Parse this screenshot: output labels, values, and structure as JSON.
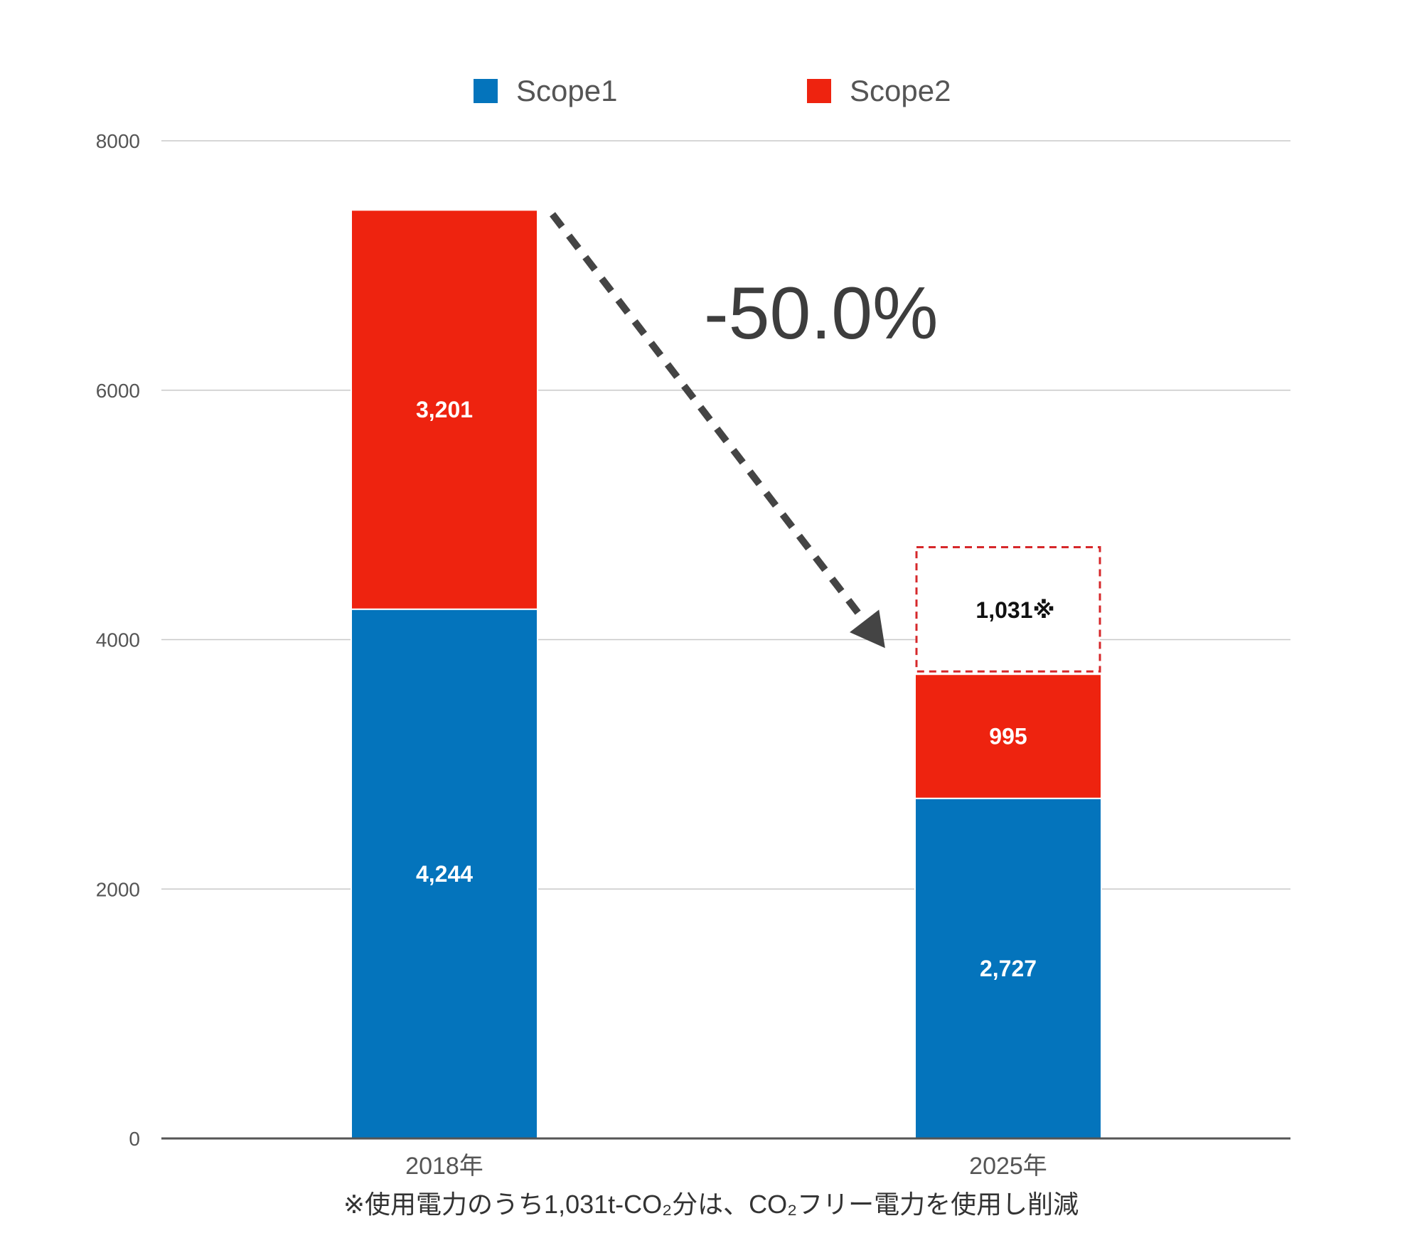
{
  "chart_data": {
    "type": "bar",
    "stacked": true,
    "categories": [
      "2018年",
      "2025年"
    ],
    "series": [
      {
        "name": "Scope1",
        "color": "#0474BC",
        "values": [
          4244,
          2727
        ],
        "labels": [
          "4,244",
          "2,727"
        ]
      },
      {
        "name": "Scope2",
        "color": "#EE230F",
        "values": [
          3201,
          995
        ],
        "labels": [
          "3,201",
          "995"
        ]
      }
    ],
    "extra_segment": {
      "category": "2025年",
      "value": 1031,
      "label": "1,031※",
      "style": "dashed-outline",
      "color": "#D6282B"
    },
    "ylim": [
      0,
      8000
    ],
    "yticks": [
      0,
      2000,
      4000,
      6000,
      8000
    ],
    "ytick_labels": [
      "0",
      "2000",
      "4000",
      "6000",
      "8000"
    ],
    "grid": true,
    "legend": "top-center",
    "annotation": {
      "text": "-50.0%",
      "arrow": "dashed from 2018年 bar top to 2025年 bar"
    },
    "footnote": "※使用電力のうち1,031t-CO₂分は、CO₂フリー電力を使用し削減"
  }
}
